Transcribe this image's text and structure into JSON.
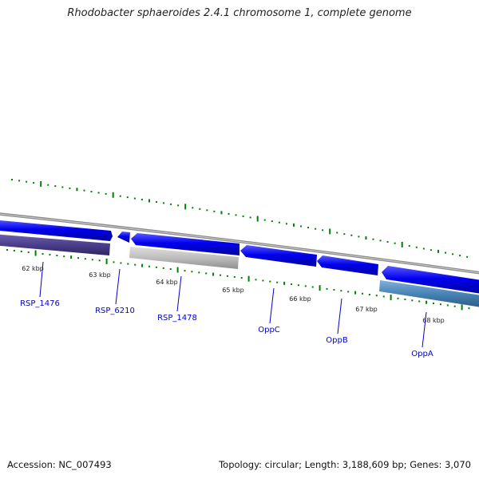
{
  "title": "Rhodobacter sphaeroides 2.4.1 chromosome 1, complete genome",
  "footer": {
    "accession": "Accession: NC_007493",
    "stats": "Topology: circular; Length: 3,188,609 bp; Genes: 3,070"
  },
  "scale": {
    "unit": "kbp",
    "ticks": [
      "62 kbp",
      "63 kbp",
      "64 kbp",
      "65 kbp",
      "66 kbp",
      "67 kbp",
      "68 kbp"
    ]
  },
  "genes": [
    {
      "name": "RSP_1476",
      "strand": "forward",
      "color": "#0000ee"
    },
    {
      "name": "",
      "strand": "forward",
      "color": "#4b3f8c"
    },
    {
      "name": "RSP_6210",
      "strand": "reverse",
      "color": "#0000ee"
    },
    {
      "name": "RSP_1478",
      "strand": "reverse",
      "color": "#0000ee"
    },
    {
      "name": "",
      "strand": "reverse",
      "color": "#b8b8b8"
    },
    {
      "name": "OppC",
      "strand": "reverse",
      "color": "#0000ee"
    },
    {
      "name": "OppB",
      "strand": "reverse",
      "color": "#0000ee"
    },
    {
      "name": "OppA",
      "strand": "reverse",
      "color": "#0000ee"
    },
    {
      "name": "",
      "strand": "reverse",
      "color": "#4682b4"
    }
  ],
  "colors": {
    "backbone": "#8a8a8a",
    "gene_blue": "#0000ee",
    "tick_green": "#008000",
    "label_blue": "#0000cc"
  }
}
